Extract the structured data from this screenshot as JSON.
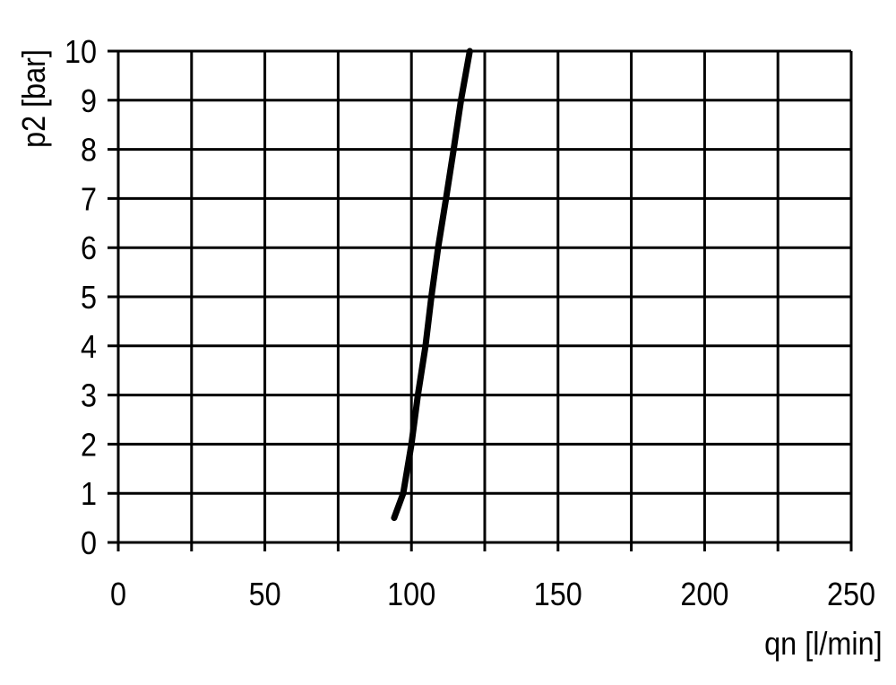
{
  "chart_data": {
    "type": "line",
    "title": "",
    "xlabel": "qn [l/min]",
    "ylabel": "p2 [bar]",
    "xlim": [
      0,
      250
    ],
    "ylim": [
      0,
      10
    ],
    "xticks": [
      0,
      50,
      100,
      150,
      200,
      250
    ],
    "yticks": [
      0,
      1,
      2,
      3,
      4,
      5,
      6,
      7,
      8,
      9,
      10
    ],
    "x_grid_step": 25,
    "grid": true,
    "line_color": "#000000",
    "series": [
      {
        "x": [
          94.1,
          97.2,
          100.0,
          102.2,
          104.8,
          106.8,
          109.1,
          111.8,
          114.4,
          116.9,
          119.9
        ],
        "y": [
          0.5,
          1,
          2,
          3,
          4,
          5,
          6,
          7,
          8,
          9,
          10
        ]
      }
    ]
  }
}
